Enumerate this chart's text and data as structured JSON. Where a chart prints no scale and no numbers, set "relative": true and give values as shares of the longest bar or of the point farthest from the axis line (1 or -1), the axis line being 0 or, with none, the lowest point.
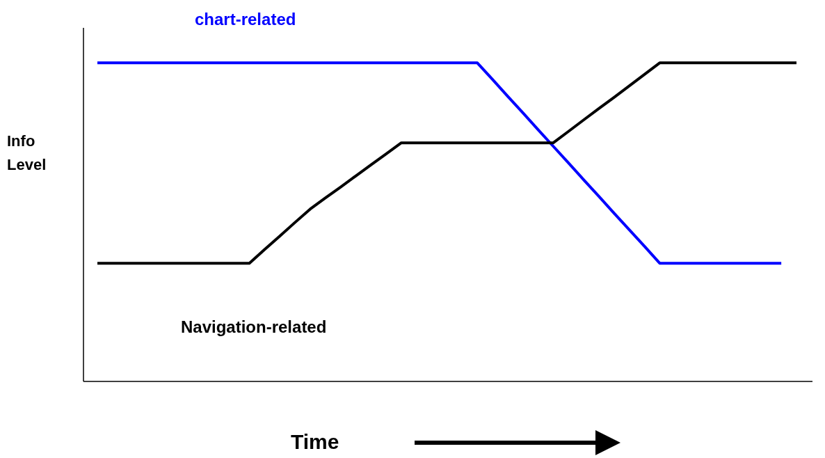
{
  "chart_data": {
    "type": "line",
    "relative": true,
    "xlabel": "Time",
    "ylabel": "Info Level",
    "marker": "none",
    "categories": [
      null,
      null,
      null,
      null,
      null,
      null,
      null,
      null,
      null,
      null,
      null,
      null,
      null,
      null,
      null,
      null,
      null,
      null,
      null,
      null,
      null,
      null,
      null,
      null,
      null,
      null,
      null,
      null,
      null,
      null,
      null,
      null,
      null,
      null,
      null,
      null,
      null,
      null,
      null,
      null,
      null,
      null,
      null,
      null,
      null,
      null,
      null
    ],
    "series": [
      {
        "name": "chart-related",
        "color": "#0000ff",
        "values": [
          1,
          1,
          1,
          1,
          1,
          1,
          1,
          1,
          1,
          1,
          1,
          1,
          1,
          1,
          1,
          1,
          1,
          1,
          1,
          1,
          1,
          1,
          1,
          1,
          1,
          1,
          0.948,
          0.895,
          0.843,
          0.79,
          0.738,
          0.686,
          0.633,
          0.581,
          0.528,
          0.476,
          0.424,
          0.371,
          0.371,
          0.371,
          0.371,
          0.371,
          0.371,
          0.371,
          0.371,
          0.371,
          null
        ]
      },
      {
        "name": "Navigation-related",
        "color": "#000000",
        "values": [
          0.371,
          0.371,
          0.371,
          0.371,
          0.371,
          0.371,
          0.371,
          0.371,
          0.371,
          0.371,
          0.371,
          0.414,
          0.456,
          0.499,
          0.541,
          0.576,
          0.61,
          0.645,
          0.68,
          0.714,
          0.749,
          0.749,
          0.749,
          0.749,
          0.749,
          0.749,
          0.749,
          0.749,
          0.749,
          0.749,
          0.749,
          0.785,
          0.821,
          0.857,
          0.892,
          0.928,
          0.964,
          1,
          1,
          1,
          1,
          1,
          1,
          1,
          1,
          1,
          1
        ]
      }
    ]
  }
}
